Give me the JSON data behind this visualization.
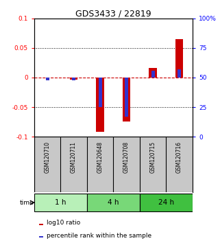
{
  "title": "GDS3433 / 22819",
  "samples": [
    "GSM120710",
    "GSM120711",
    "GSM120648",
    "GSM120708",
    "GSM120715",
    "GSM120716"
  ],
  "time_groups": [
    {
      "label": "1 h",
      "color": "#b8f0b8",
      "start": 0,
      "end": 1
    },
    {
      "label": "4 h",
      "color": "#78d878",
      "start": 2,
      "end": 3
    },
    {
      "label": "24 h",
      "color": "#40c040",
      "start": 4,
      "end": 5
    }
  ],
  "log10_ratio": [
    0.0,
    -0.004,
    -0.092,
    -0.074,
    0.016,
    0.065
  ],
  "percentile_rank": [
    47.5,
    47.5,
    25.0,
    17.0,
    56.0,
    57.0
  ],
  "ylim_left": [
    -0.1,
    0.1
  ],
  "ylim_right": [
    0,
    100
  ],
  "yticks_left": [
    -0.1,
    -0.05,
    0,
    0.05,
    0.1
  ],
  "yticks_right": [
    0,
    25,
    50,
    75,
    100
  ],
  "red_color": "#cc0000",
  "blue_color": "#3333cc",
  "bg_color": "#ffffff",
  "sample_box_color": "#c8c8c8",
  "legend_red_label": "log10 ratio",
  "legend_blue_label": "percentile rank within the sample"
}
